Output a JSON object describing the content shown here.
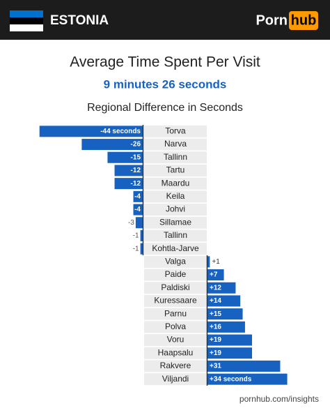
{
  "header": {
    "country": "ESTONIA",
    "logo": [
      "Porn",
      "hub"
    ]
  },
  "footer": "pornhub.com/insights",
  "chart_data": {
    "type": "bar",
    "orientation": "horizontal",
    "title": "Average Time Spent Per Visit",
    "subtitle": "9 minutes 26 seconds",
    "caption": "Regional Difference in Seconds",
    "categories": [
      "Torva",
      "Narva",
      "Tallinn",
      "Tartu",
      "Maardu",
      "Keila",
      "Johvi",
      "Sillamae",
      "Tallinn",
      "Kohtla-Jarve",
      "Valga",
      "Paide",
      "Paldiski",
      "Kuressaare",
      "Parnu",
      "Polva",
      "Voru",
      "Haapsalu",
      "Rakvere",
      "Viljandi"
    ],
    "values": [
      -44,
      -26,
      -15,
      -12,
      -12,
      -4,
      -4,
      -3,
      -1,
      -1,
      1,
      7,
      12,
      14,
      15,
      16,
      19,
      19,
      31,
      34
    ],
    "value_labels": [
      "-44 seconds",
      "-26",
      "-15",
      "-12",
      "-12",
      "-4",
      "-4",
      "-3",
      "-1",
      "-1",
      "+1",
      "+7",
      "+12",
      "+14",
      "+15",
      "+16",
      "+19",
      "+19",
      "+31",
      "+34 seconds"
    ],
    "color": "#1762c0"
  }
}
